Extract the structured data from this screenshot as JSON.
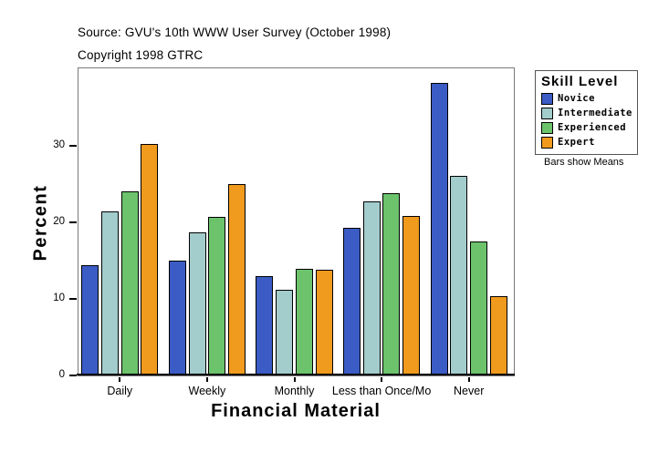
{
  "header": {
    "source": "Source: GVU's 10th WWW User Survey (October 1998)",
    "copyright": "Copyright 1998 GTRC"
  },
  "legend": {
    "title": "Skill Level",
    "note": "Bars show Means"
  },
  "chart_data": {
    "type": "bar",
    "title": "",
    "xlabel": "Financial Material",
    "ylabel": "Percent",
    "categories": [
      "Daily",
      "Weekly",
      "Monthly",
      "Less than Once/Mo",
      "Never"
    ],
    "series": [
      {
        "name": "Novice",
        "color": "#3b5cc4",
        "values": [
          14.4,
          15.0,
          13.0,
          19.3,
          38.2
        ]
      },
      {
        "name": "Intermediate",
        "color": "#a3cccc",
        "values": [
          21.4,
          18.7,
          11.2,
          22.7,
          26.0
        ]
      },
      {
        "name": "Experienced",
        "color": "#6cc36c",
        "values": [
          24.0,
          20.7,
          13.9,
          23.8,
          17.5
        ]
      },
      {
        "name": "Expert",
        "color": "#f09a1e",
        "values": [
          30.2,
          25.0,
          13.8,
          20.8,
          10.3
        ]
      }
    ],
    "yticks": [
      0,
      10,
      20,
      30
    ],
    "ylim": [
      0,
      40.2
    ],
    "grid": false,
    "legend_position": "right",
    "annotation": "Bars show Means"
  }
}
